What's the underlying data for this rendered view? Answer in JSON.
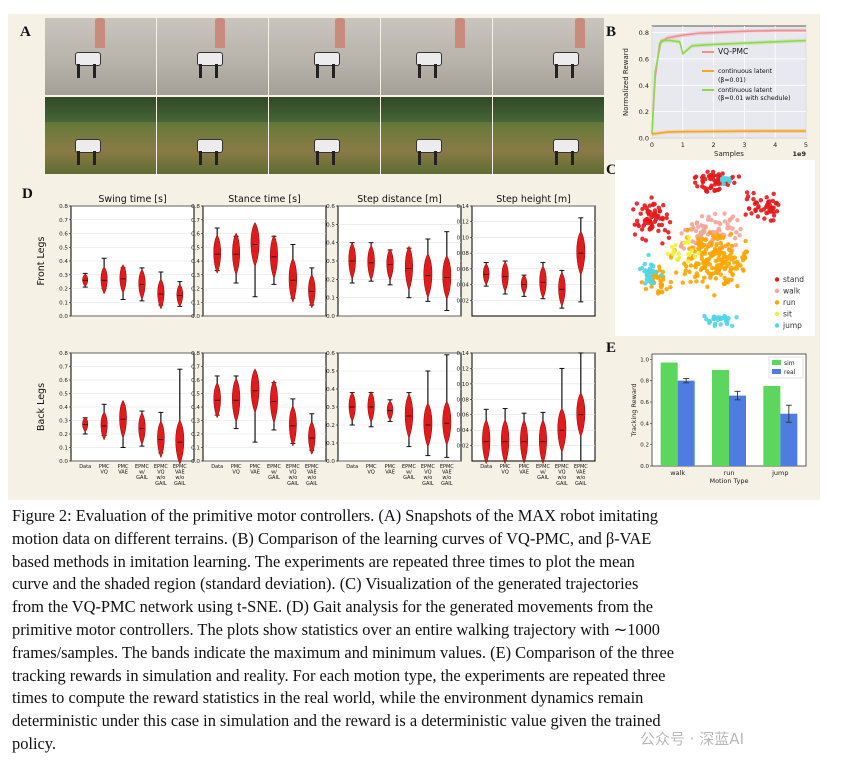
{
  "panels": {
    "a": "A",
    "b": "B",
    "c": "C",
    "d": "D",
    "e": "E"
  },
  "panel_b": {
    "title": "",
    "ylabel": "Normalized Reward",
    "xlabel": "Samples",
    "x_multiplier": "1e9",
    "xticks": [
      "0",
      "1",
      "2",
      "3",
      "4",
      "5"
    ],
    "yticks": [
      "0.0",
      "0.2",
      "0.4",
      "0.6",
      "0.8"
    ],
    "legend": [
      "VQ-PMC",
      "continuous latent",
      "(β=0.01)",
      "continuous latent",
      "(β=0.01 with schedule)"
    ]
  },
  "panel_c": {
    "legend": [
      "stand",
      "walk",
      "run",
      "sit",
      "jump"
    ]
  },
  "panel_d": {
    "columns": [
      "Swing time [s]",
      "Stance time [s]",
      "Step distance [m]",
      "Step height [m]"
    ],
    "rows": [
      "Front Legs",
      "Back Legs"
    ],
    "methods": [
      "Data",
      "PMC VQ",
      "PMC VAE",
      "EPMC w/ GAIL",
      "EPMC VQ w/o GAIL",
      "EPMC VAE w/o GAIL"
    ],
    "method_lines": [
      [
        "Data"
      ],
      [
        "PMC",
        "VQ"
      ],
      [
        "PMC",
        "VAE"
      ],
      [
        "EPMC",
        "w/",
        "GAIL"
      ],
      [
        "EPMC",
        "VQ",
        "w/o",
        "GAIL"
      ],
      [
        "EPMC",
        "VAE",
        "w/o",
        "GAIL"
      ]
    ],
    "yticks_a": [
      "0.0",
      "0.1",
      "0.2",
      "0.3",
      "0.4",
      "0.5",
      "0.6",
      "0.7",
      "0.8"
    ],
    "yticks_b": [
      "0.02",
      "0.04",
      "0.06",
      "0.08",
      "0.10",
      "0.12",
      "0.14"
    ]
  },
  "panel_e": {
    "ylabel": "Tracking Reward",
    "xlabel": "Motion Type",
    "legend": [
      "sim",
      "real"
    ],
    "yticks": [
      "0.0",
      "0.2",
      "0.4",
      "0.6",
      "0.8",
      "1.0"
    ]
  },
  "caption_lines": [
    "Figure 2: Evaluation of the primitive motor controllers. (A) Snapshots of the MAX robot imitating",
    "motion data on different terrains. (B) Comparison of the learning curves of VQ-PMC, and β-VAE",
    "based methods in imitation learning. The experiments are repeated three times to plot the mean",
    "curve and the shaded region (standard deviation). (C) Visualization of the generated trajectories",
    "from the VQ-PMC network using t-SNE. (D) Gait analysis for the generated movements from the",
    "primitive motor controllers. The plots show statistics over an entire walking trajectory with ∼1000",
    "frames/samples. The bands indicate the maximum and minimum values. (E) Comparison of the three",
    "tracking rewards in simulation and reality. For each motion type, the experiments are repeated three",
    "times to compute the reward statistics in the real world, while the environment dynamics remain",
    "deterministic under this case in simulation and the reward is a deterministic value given the trained",
    "policy."
  ],
  "watermark": "公众号 · 深蓝AI",
  "chart_data": [
    {
      "type": "line",
      "title": "",
      "xlabel": "Samples",
      "ylabel": "Normalized Reward",
      "xlim": [
        0,
        5
      ],
      "ylim": [
        0,
        0.85
      ],
      "series": [
        {
          "name": "VQ-PMC",
          "color": "#f08f8f",
          "x": [
            0,
            0.1,
            0.25,
            0.5,
            1,
            1.5,
            2,
            3,
            4,
            5
          ],
          "y": [
            0.03,
            0.45,
            0.72,
            0.76,
            0.78,
            0.795,
            0.8,
            0.81,
            0.815,
            0.815
          ]
        },
        {
          "name": "continuous latent (β=0.01)",
          "color": "#f5a623",
          "x": [
            0,
            0.5,
            1,
            2,
            3,
            4,
            5
          ],
          "y": [
            0.03,
            0.045,
            0.048,
            0.05,
            0.052,
            0.053,
            0.053
          ]
        },
        {
          "name": "continuous latent (β=0.01 with schedule)",
          "color": "#8ed94a",
          "x": [
            0,
            0.1,
            0.3,
            0.6,
            0.9,
            1.0,
            1.3,
            2,
            3,
            4,
            5
          ],
          "y": [
            0.03,
            0.5,
            0.74,
            0.74,
            0.73,
            0.64,
            0.7,
            0.71,
            0.72,
            0.73,
            0.74
          ]
        }
      ]
    },
    {
      "type": "scatter",
      "title": "t-SNE",
      "classes": [
        {
          "name": "stand",
          "color": "#e41a1c"
        },
        {
          "name": "walk",
          "color": "#f4a59a"
        },
        {
          "name": "run",
          "color": "#ffa500"
        },
        {
          "name": "sit",
          "color": "#f2f23a"
        },
        {
          "name": "jump",
          "color": "#4fd6e8"
        }
      ]
    },
    {
      "type": "violin",
      "title": "Gait analysis",
      "methods": [
        "Data",
        "PMC VQ",
        "PMC VAE",
        "EPMC w/ GAIL",
        "EPMC VQ w/o GAIL",
        "EPMC VAE w/o GAIL"
      ],
      "panels": [
        {
          "row": "Front Legs",
          "metric": "Swing time [s]",
          "ylim": [
            0,
            0.8
          ],
          "min": [
            0.21,
            0.2,
            0.12,
            0.11,
            0.08,
            0.07
          ],
          "max": [
            0.31,
            0.42,
            0.35,
            0.35,
            0.32,
            0.25
          ],
          "median": [
            0.26,
            0.26,
            0.27,
            0.23,
            0.16,
            0.15
          ]
        },
        {
          "row": "Front Legs",
          "metric": "Stance time [s]",
          "ylim": [
            0,
            0.8
          ],
          "min": [
            0.33,
            0.24,
            0.14,
            0.23,
            0.13,
            0.08
          ],
          "max": [
            0.64,
            0.58,
            0.62,
            0.58,
            0.52,
            0.35
          ],
          "median": [
            0.45,
            0.45,
            0.52,
            0.43,
            0.26,
            0.18
          ]
        },
        {
          "row": "Front Legs",
          "metric": "Step distance [m]",
          "ylim": [
            0,
            0.6
          ],
          "min": [
            0.18,
            0.19,
            0.17,
            0.1,
            0.08,
            0.03
          ],
          "max": [
            0.4,
            0.4,
            0.36,
            0.37,
            0.42,
            0.46
          ],
          "median": [
            0.3,
            0.29,
            0.28,
            0.26,
            0.22,
            0.21
          ]
        },
        {
          "row": "Front Legs",
          "metric": "Step height [m]",
          "ylim": [
            0,
            0.14
          ],
          "min": [
            0.038,
            0.028,
            0.025,
            0.022,
            0.01,
            0.018
          ],
          "max": [
            0.068,
            0.07,
            0.052,
            0.068,
            0.058,
            0.125
          ],
          "median": [
            0.053,
            0.05,
            0.04,
            0.043,
            0.034,
            0.08
          ]
        },
        {
          "row": "Back Legs",
          "metric": "Swing time [s]",
          "ylim": [
            0,
            0.8
          ],
          "min": [
            0.2,
            0.19,
            0.1,
            0.11,
            0.06,
            0.04
          ],
          "max": [
            0.32,
            0.42,
            0.41,
            0.37,
            0.36,
            0.68
          ],
          "median": [
            0.27,
            0.26,
            0.31,
            0.24,
            0.16,
            0.14
          ]
        },
        {
          "row": "Back Legs",
          "metric": "Stance time [s]",
          "ylim": [
            0,
            0.8
          ],
          "min": [
            0.34,
            0.24,
            0.14,
            0.23,
            0.13,
            0.08
          ],
          "max": [
            0.63,
            0.63,
            0.58,
            0.58,
            0.46,
            0.35
          ],
          "median": [
            0.45,
            0.45,
            0.52,
            0.44,
            0.26,
            0.17
          ]
        },
        {
          "row": "Back Legs",
          "metric": "Step distance [m]",
          "ylim": [
            0,
            0.6
          ],
          "min": [
            0.2,
            0.19,
            0.22,
            0.08,
            0.03,
            0.02
          ],
          "max": [
            0.38,
            0.38,
            0.34,
            0.38,
            0.5,
            0.59
          ],
          "median": [
            0.3,
            0.3,
            0.28,
            0.25,
            0.2,
            0.21
          ]
        },
        {
          "row": "Back Legs",
          "metric": "Step height [m]",
          "ylim": [
            0,
            0.14
          ],
          "min": [
            0.0,
            0.0,
            0.0,
            0.0,
            0.0,
            0.0
          ],
          "max": [
            0.067,
            0.068,
            0.062,
            0.063,
            0.12,
            0.14
          ],
          "median": [
            0.025,
            0.025,
            0.025,
            0.025,
            0.04,
            0.06
          ]
        }
      ]
    },
    {
      "type": "bar",
      "title": "",
      "xlabel": "Motion Type",
      "ylabel": "Tracking Reward",
      "categories": [
        "walk",
        "run",
        "jump"
      ],
      "ylim": [
        0,
        1.05
      ],
      "series": [
        {
          "name": "sim",
          "color": "#5dd65d",
          "values": [
            0.97,
            0.9,
            0.75
          ],
          "error": [
            0,
            0,
            0
          ]
        },
        {
          "name": "real",
          "color": "#4f7ce0",
          "values": [
            0.8,
            0.66,
            0.49
          ],
          "error": [
            0.02,
            0.04,
            0.08
          ]
        }
      ]
    }
  ]
}
